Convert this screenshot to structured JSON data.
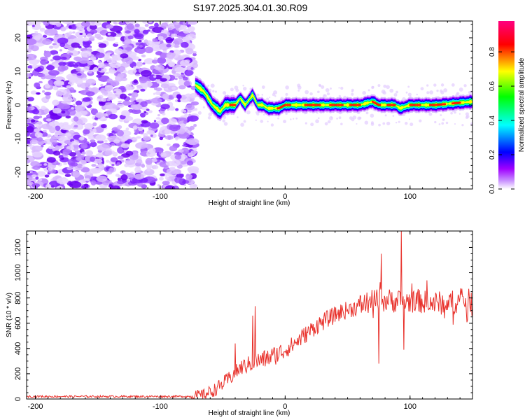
{
  "title": "S197.2025.304.01.30.R09",
  "chart_data": [
    {
      "type": "heatmap",
      "name": "spectrogram",
      "xlabel": "Height of straight line (km)",
      "ylabel": "Frequency (Hz)",
      "xlim": [
        -207,
        150
      ],
      "ylim": [
        -25,
        25
      ],
      "xticks": [
        -200,
        -100,
        0,
        100
      ],
      "yticks": [
        -20,
        -10,
        0,
        10,
        20
      ],
      "colorbar": {
        "label": "Normalized spectral amplitude",
        "range": [
          0,
          0.98
        ],
        "ticks": [
          "0.0",
          "0.2",
          "0.4",
          "0.6",
          "0.8"
        ],
        "colors": [
          "#ffffff",
          "#a000ff",
          "#0000ff",
          "#00ffff",
          "#00ff00",
          "#ffff00",
          "#ff0000",
          "#ff0080"
        ]
      },
      "noise_region_x": [
        -207,
        -72
      ],
      "signal_track": {
        "x": [
          -72,
          -65,
          -58,
          -52,
          -48,
          -44,
          -40,
          -36,
          -32,
          -26,
          -22,
          -18,
          -14,
          -10,
          -5,
          0,
          20,
          40,
          60,
          70,
          75,
          80,
          88,
          92,
          100,
          120,
          150
        ],
        "y": [
          6,
          4,
          0,
          -2,
          0,
          0,
          0,
          2,
          0,
          3,
          0,
          0,
          -1,
          -1,
          -1,
          0,
          0,
          0,
          0,
          1,
          0,
          0,
          0,
          -1,
          0,
          0,
          1
        ]
      }
    },
    {
      "type": "line",
      "name": "snr",
      "xlabel": "Height of straight line (km)",
      "ylabel": "SNR (10 * v/v)",
      "xlim": [
        -207,
        150
      ],
      "ylim": [
        0,
        1330
      ],
      "xticks": [
        -200,
        -100,
        0,
        100
      ],
      "yticks": [
        0,
        200,
        400,
        600,
        800,
        1000,
        1200
      ],
      "color": "#e8302a",
      "trend": {
        "x": [
          -207,
          -75,
          -65,
          -55,
          -45,
          -35,
          -25,
          -15,
          -5,
          5,
          15,
          25,
          35,
          45,
          55,
          65,
          75,
          85,
          95,
          105,
          115,
          125,
          135,
          150
        ],
        "y": [
          20,
          20,
          30,
          80,
          160,
          250,
          290,
          320,
          360,
          420,
          500,
          580,
          640,
          690,
          720,
          760,
          780,
          780,
          770,
          780,
          760,
          760,
          770,
          780
        ]
      },
      "spikes": [
        {
          "x": -40,
          "y": 440
        },
        {
          "x": -24,
          "y": 735
        },
        {
          "x": -26,
          "y": 660
        },
        {
          "x": 75,
          "y": 280
        },
        {
          "x": 77,
          "y": 1150
        },
        {
          "x": 93,
          "y": 1330
        },
        {
          "x": 95,
          "y": 390
        }
      ]
    }
  ]
}
